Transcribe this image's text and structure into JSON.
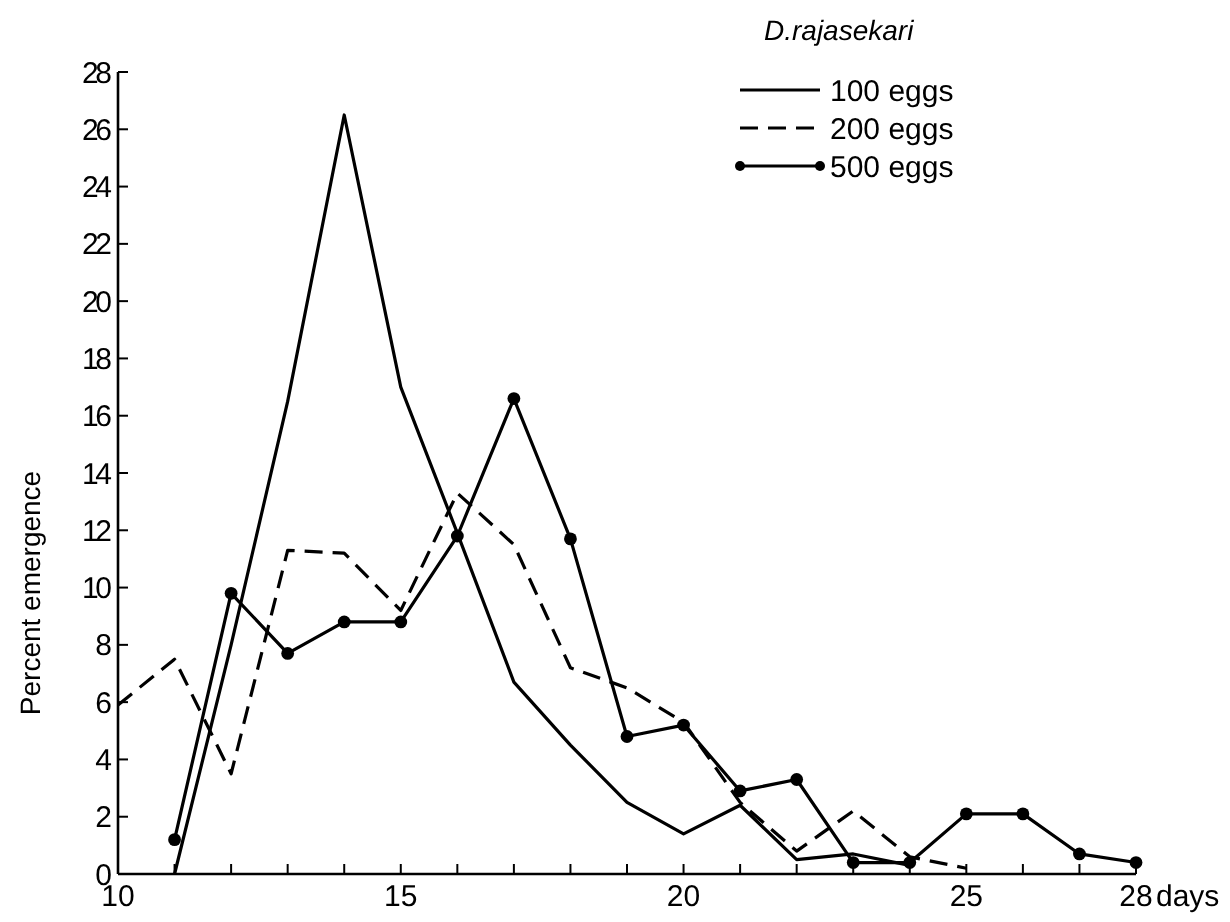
{
  "chart_data": {
    "type": "line",
    "xlabel": "days",
    "ylabel": "Percent emergence",
    "legend_title": "D.rajasekari",
    "legend": "top right",
    "grid": false,
    "xlim": [
      10,
      28
    ],
    "ylim": [
      0,
      28
    ],
    "xticks": [
      10,
      {
        "value": 11,
        "label": null
      },
      {
        "value": 12,
        "label": null
      },
      {
        "value": 13,
        "label": null
      },
      {
        "value": 14,
        "label": null
      },
      15,
      {
        "value": 16,
        "label": null
      },
      {
        "value": 17,
        "label": null
      },
      {
        "value": 18,
        "label": null
      },
      {
        "value": 19,
        "label": null
      },
      20,
      {
        "value": 21,
        "label": null
      },
      {
        "value": 22,
        "label": null
      },
      {
        "value": 23,
        "label": null
      },
      {
        "value": 24,
        "label": null
      },
      25,
      {
        "value": 26,
        "label": null
      },
      {
        "value": 27,
        "label": null
      },
      28
    ],
    "yticks": [
      0,
      2,
      4,
      6,
      8,
      10,
      12,
      14,
      16,
      18,
      20,
      22,
      24,
      26,
      28
    ],
    "series": [
      {
        "name": "100 eggs",
        "color": "#000000",
        "line_style": "solid",
        "marker": "none",
        "x": [
          11,
          12,
          13,
          14,
          15,
          16,
          17,
          18,
          19,
          20,
          21,
          22,
          23,
          24
        ],
        "values": [
          0,
          8,
          16.5,
          26.5,
          17,
          11.9,
          6.7,
          4.5,
          2.5,
          1.4,
          2.4,
          0.5,
          0.7,
          0.3
        ]
      },
      {
        "name": "200 eggs",
        "color": "#000000",
        "line_style": "dashed",
        "marker": "none",
        "x": [
          10,
          11,
          12,
          13,
          14,
          15,
          16,
          17,
          18,
          19,
          20,
          21,
          22,
          23,
          24,
          25
        ],
        "values": [
          5.9,
          7.5,
          3.5,
          11.3,
          11.2,
          9.2,
          13.3,
          11.5,
          7.2,
          6.5,
          5.3,
          2.5,
          0.8,
          2.2,
          0.6,
          0.2
        ]
      },
      {
        "name": "500 eggs",
        "color": "#000000",
        "line_style": "solid",
        "marker": "circle",
        "x": [
          11,
          12,
          13,
          14,
          15,
          16,
          17,
          18,
          19,
          20,
          21,
          22,
          23,
          24,
          25,
          26,
          27,
          28
        ],
        "values": [
          1.2,
          9.8,
          7.7,
          8.8,
          8.8,
          11.8,
          16.6,
          11.7,
          4.8,
          5.2,
          2.9,
          3.3,
          0.4,
          0.4,
          2.1,
          2.1,
          0.7,
          0.4
        ]
      }
    ]
  }
}
